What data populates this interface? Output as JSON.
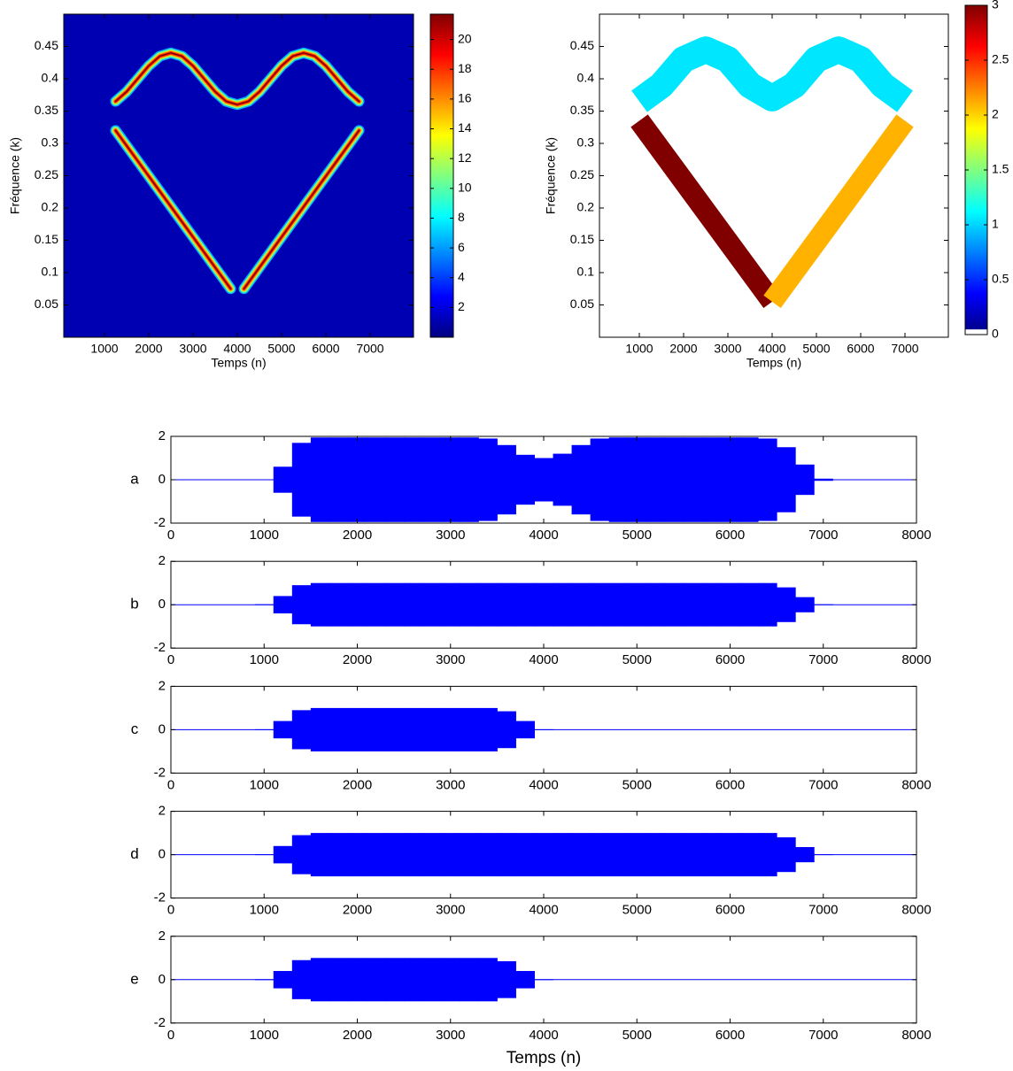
{
  "chart_data": [
    {
      "type": "spectrogram",
      "xlabel": "Temps (n)",
      "ylabel": "Fréquence (k)",
      "xlim": [
        0,
        8000
      ],
      "ylim": [
        0,
        0.5
      ],
      "xticks": [
        1000,
        2000,
        3000,
        4000,
        5000,
        6000,
        7000
      ],
      "yticks": [
        0.05,
        0.1,
        0.15,
        0.2,
        0.25,
        0.3,
        0.35,
        0.4,
        0.45
      ],
      "clim": [
        0,
        21.7
      ],
      "cticks": [
        2,
        4,
        6,
        8,
        10,
        12,
        14,
        16,
        18,
        20
      ],
      "series": [
        {
          "x": [
            1250,
            1500,
            1750,
            2000,
            2250,
            2500,
            2750,
            3000,
            3250,
            3500,
            3750,
            4000,
            4250,
            4500,
            4750,
            5000,
            5250,
            5500,
            5750,
            6000,
            6250,
            6500,
            6750
          ],
          "y": [
            0.365,
            0.38,
            0.4,
            0.42,
            0.435,
            0.44,
            0.435,
            0.42,
            0.4,
            0.38,
            0.365,
            0.36,
            0.365,
            0.38,
            0.4,
            0.42,
            0.435,
            0.44,
            0.435,
            0.42,
            0.4,
            0.38,
            0.365
          ]
        },
        {
          "x": [
            1250,
            3850
          ],
          "y": [
            0.32,
            0.075
          ]
        },
        {
          "x": [
            4150,
            6750
          ],
          "y": [
            0.075,
            0.32
          ]
        }
      ]
    },
    {
      "type": "region",
      "xlabel": "Temps (n)",
      "ylabel": "Fréquence (k)",
      "xlim": [
        0,
        8000
      ],
      "ylim": [
        0,
        0.5
      ],
      "xticks": [
        1000,
        2000,
        3000,
        4000,
        5000,
        6000,
        7000
      ],
      "yticks": [
        0.05,
        0.1,
        0.15,
        0.2,
        0.25,
        0.3,
        0.35,
        0.4,
        0.45
      ],
      "clim": [
        0,
        3
      ],
      "cticks": [
        0,
        0.5,
        1,
        1.5,
        2,
        2.5,
        3
      ],
      "series": [
        {
          "x": [
            1000,
            1500,
            2000,
            2500,
            3000,
            3500,
            4000,
            4500,
            5000,
            5500,
            6000,
            6500,
            7000
          ],
          "y": [
            0.365,
            0.39,
            0.43,
            0.445,
            0.43,
            0.39,
            0.37,
            0.39,
            0.43,
            0.445,
            0.43,
            0.39,
            0.365
          ],
          "z": 1.05
        },
        {
          "x": [
            1000,
            4000
          ],
          "y": [
            0.335,
            0.055
          ],
          "z": 3
        },
        {
          "x": [
            4000,
            7000
          ],
          "y": [
            0.055,
            0.335
          ],
          "z": 2.1
        }
      ]
    },
    {
      "type": "envelope",
      "ylabel": "a",
      "color": "#0000ff",
      "xlim": [
        0,
        8000
      ],
      "ylim": [
        -2,
        2
      ],
      "xticks": [
        0,
        1000,
        2000,
        3000,
        4000,
        5000,
        6000,
        7000,
        8000
      ],
      "yticks": [
        -2,
        0,
        2
      ],
      "x": [
        0,
        200,
        400,
        600,
        800,
        1000,
        1200,
        1400,
        1600,
        1800,
        2000,
        2200,
        2400,
        2600,
        2800,
        3000,
        3200,
        3400,
        3600,
        3800,
        4000,
        4200,
        4400,
        4600,
        4800,
        5000,
        5200,
        5400,
        5600,
        5800,
        6000,
        6200,
        6400,
        6600,
        6800,
        7000,
        7200,
        7400,
        7600,
        7800,
        8000
      ],
      "values": [
        0,
        0,
        0,
        0,
        0,
        0.02,
        0.6,
        1.7,
        1.95,
        1.95,
        1.95,
        1.95,
        1.95,
        1.95,
        1.95,
        1.95,
        1.95,
        1.9,
        1.6,
        1.15,
        1.0,
        1.2,
        1.6,
        1.9,
        1.95,
        1.95,
        1.95,
        1.95,
        1.95,
        1.95,
        1.95,
        1.95,
        1.9,
        1.5,
        0.7,
        0.05,
        0,
        0,
        0,
        0,
        0
      ]
    },
    {
      "type": "envelope",
      "ylabel": "b",
      "color": "#0000ff",
      "xlim": [
        0,
        8000
      ],
      "ylim": [
        -2,
        2
      ],
      "xticks": [
        0,
        1000,
        2000,
        3000,
        4000,
        5000,
        6000,
        7000,
        8000
      ],
      "yticks": [
        -2,
        0,
        2
      ],
      "x": [
        0,
        200,
        400,
        600,
        800,
        1000,
        1200,
        1400,
        1600,
        1800,
        2000,
        2200,
        2400,
        2600,
        2800,
        3000,
        3200,
        3400,
        3600,
        3800,
        4000,
        4200,
        4400,
        4600,
        4800,
        5000,
        5200,
        5400,
        5600,
        5800,
        6000,
        6200,
        6400,
        6600,
        6800,
        7000,
        7200,
        7400,
        7600,
        7800,
        8000
      ],
      "values": [
        0,
        0,
        0,
        0,
        0,
        0.02,
        0.4,
        0.9,
        1,
        1,
        1,
        1,
        1,
        1,
        1,
        1,
        1,
        1,
        1,
        1,
        1,
        1,
        1,
        1,
        1,
        1,
        1,
        1,
        1,
        1,
        1,
        1,
        1,
        0.8,
        0.35,
        0.02,
        0,
        0,
        0,
        0,
        0
      ]
    },
    {
      "type": "envelope",
      "ylabel": "c",
      "color": "#0000ff",
      "xlim": [
        0,
        8000
      ],
      "ylim": [
        -2,
        2
      ],
      "xticks": [
        0,
        1000,
        2000,
        3000,
        4000,
        5000,
        6000,
        7000,
        8000
      ],
      "yticks": [
        -2,
        0,
        2
      ],
      "x": [
        0,
        200,
        400,
        600,
        800,
        1000,
        1200,
        1400,
        1600,
        1800,
        2000,
        2200,
        2400,
        2600,
        2800,
        3000,
        3200,
        3400,
        3600,
        3800,
        4000,
        4200,
        4400,
        4600,
        4800,
        5000,
        5200,
        5400,
        5600,
        5800,
        6000,
        6200,
        6400,
        6600,
        6800,
        7000,
        7200,
        7400,
        7600,
        7800,
        8000
      ],
      "values": [
        0,
        0,
        0,
        0,
        0,
        0.02,
        0.4,
        0.9,
        1,
        1,
        1,
        1,
        1,
        1,
        1,
        1,
        1,
        1,
        0.85,
        0.4,
        0.02,
        0,
        0,
        0,
        0,
        0,
        0,
        0,
        0,
        0,
        0,
        0,
        0,
        0,
        0,
        0,
        0,
        0,
        0,
        0,
        0
      ]
    },
    {
      "type": "envelope",
      "ylabel": "d",
      "color": "#0000ff",
      "xlim": [
        0,
        8000
      ],
      "ylim": [
        -2,
        2
      ],
      "xticks": [
        0,
        1000,
        2000,
        3000,
        4000,
        5000,
        6000,
        7000,
        8000
      ],
      "yticks": [
        -2,
        0,
        2
      ],
      "x": [
        0,
        200,
        400,
        600,
        800,
        1000,
        1200,
        1400,
        1600,
        1800,
        2000,
        2200,
        2400,
        2600,
        2800,
        3000,
        3200,
        3400,
        3600,
        3800,
        4000,
        4200,
        4400,
        4600,
        4800,
        5000,
        5200,
        5400,
        5600,
        5800,
        6000,
        6200,
        6400,
        6600,
        6800,
        7000,
        7200,
        7400,
        7600,
        7800,
        8000
      ],
      "values": [
        0,
        0,
        0,
        0,
        0,
        0.02,
        0.4,
        0.9,
        1,
        1,
        1,
        1,
        1,
        1,
        1,
        1,
        1,
        1,
        1,
        1,
        1,
        1,
        1,
        1,
        1,
        1,
        1,
        1,
        1,
        1,
        1,
        1,
        1,
        0.8,
        0.35,
        0.02,
        0,
        0,
        0,
        0,
        0
      ]
    },
    {
      "type": "envelope",
      "ylabel": "e",
      "xlabel": "Temps (n)",
      "color": "#0000ff",
      "xlim": [
        0,
        8000
      ],
      "ylim": [
        -2,
        2
      ],
      "xticks": [
        0,
        1000,
        2000,
        3000,
        4000,
        5000,
        6000,
        7000,
        8000
      ],
      "yticks": [
        -2,
        0,
        2
      ],
      "x": [
        0,
        200,
        400,
        600,
        800,
        1000,
        1200,
        1400,
        1600,
        1800,
        2000,
        2200,
        2400,
        2600,
        2800,
        3000,
        3200,
        3400,
        3600,
        3800,
        4000,
        4200,
        4400,
        4600,
        4800,
        5000,
        5200,
        5400,
        5600,
        5800,
        6000,
        6200,
        6400,
        6600,
        6800,
        7000,
        7200,
        7400,
        7600,
        7800,
        8000
      ],
      "values": [
        0,
        0,
        0,
        0,
        0,
        0.02,
        0.4,
        0.9,
        1,
        1,
        1,
        1,
        1,
        1,
        1,
        1,
        1,
        1,
        0.85,
        0.4,
        0.02,
        0,
        0,
        0,
        0,
        0,
        0,
        0,
        0,
        0,
        0,
        0,
        0,
        0,
        0,
        0,
        0,
        0,
        0,
        0,
        0
      ]
    }
  ]
}
